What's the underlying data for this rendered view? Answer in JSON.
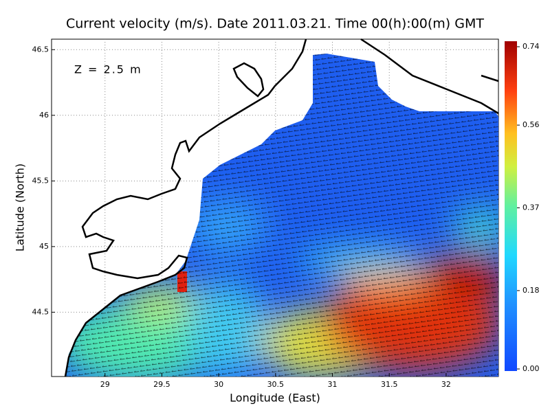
{
  "chart_data": {
    "type": "map",
    "title": "Current velocity (m/s). Date 2011.03.21. Time 00(h):00(m) GMT",
    "annotation": "Z = 2.5 m",
    "x_label": "Longitude (East)",
    "y_label": "Latitude (North)",
    "xlim": [
      28.53,
      32.46
    ],
    "ylim": [
      44.01,
      46.58
    ],
    "xticks": [
      29,
      29.5,
      30,
      30.5,
      31,
      31.5,
      32
    ],
    "yticks": [
      44.5,
      45,
      45.5,
      46,
      46.5
    ],
    "grid": true,
    "colorbar": {
      "lim": [
        0,
        0.74
      ],
      "ticks": [
        {
          "value": 0,
          "label": "0.00"
        },
        0.18,
        0.37,
        0.56,
        0.74
      ]
    }
  }
}
